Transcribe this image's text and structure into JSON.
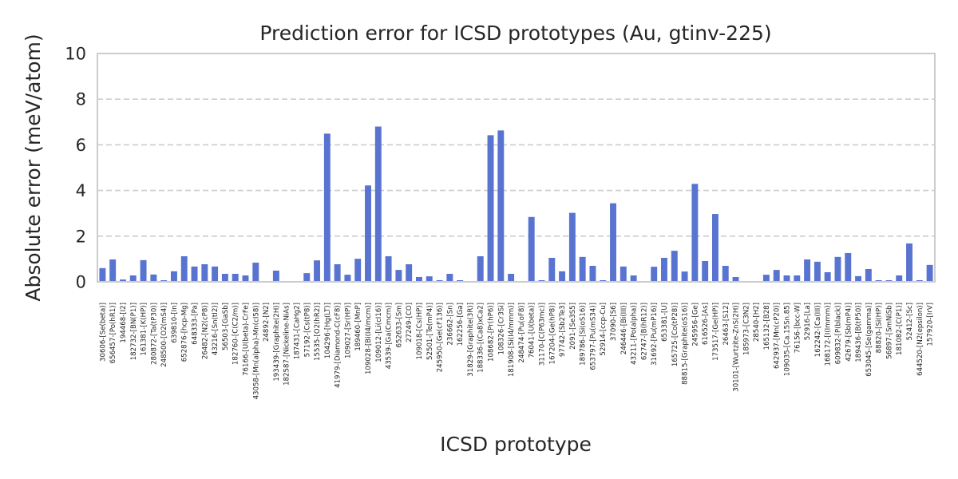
{
  "chart_data": {
    "type": "bar",
    "title": "Prediction error for ICSD prototypes (Au, gtinv-225)",
    "xlabel": "ICSD prototype",
    "ylabel": "Absolute error (meV/atom)",
    "ylim": [
      0,
      10
    ],
    "yticks": [
      0,
      2,
      4,
      6,
      8,
      10
    ],
    "grid": "y-dashed",
    "bar_color": "#5874d0",
    "categories": [
      "30606-[Se(beta)]",
      "656457-[Po(hR1)]",
      "194468-[I2]",
      "182732-[BN(P1)]",
      "161381-[K(HP)]",
      "280872-[Ta(tP30)]",
      "248500-[O2(mS4)]",
      "639810-[In]",
      "652876-[hcp-Mg]",
      "648333-[Pa]",
      "26482-[N2(cP8)]",
      "43216-[Sn(tI2)]",
      "56503-[GaSb]",
      "182760-[C(C2/m)]",
      "76166-[U(beta)-CrFe]",
      "43058-[Mn(alpha)-Mn(cI58)]",
      "24892-[N2]",
      "193439-[Graphite(2H)]",
      "182587-[Nickeline-NiAs]",
      "187431-[CaHg2]",
      "57192-[Cs(tP8)]",
      "15535-[O2(hR2)]",
      "104296-[Hg(LT)]",
      "41979-[Diamond-C(cF8)]",
      "109027-[Sr(HP)]",
      "189460-[MnP]",
      "109028-[Bi(I4/mcm)]",
      "109012-[Li(cI16)]",
      "43539-[Ga(Cmcm)]",
      "652633-[Sm]",
      "27249-[CO]",
      "109018-[Cs(HP)]",
      "52501-[Te(mP4)]",
      "245950-[Ge(cF136)]",
      "236662-[Sn]",
      "162256-[Ga]",
      "31829-[Graphite(3R)]",
      "188336-[(Ca8)xCa2]",
      "108682-[Pr(hP6)]",
      "108326-[Cr3Si]",
      "181908-[Si(I4/mmm)]",
      "248474-[Pu(oF8)]",
      "76041-[U(beta)]",
      "31170-[C(P63mc)]",
      "167204-[Ge(hP8)]",
      "97742-[Sb2Te3]",
      "2091-[Se3S5]",
      "189786-[Si(oS16)]",
      "653797-[Pu(mS34)]",
      "52914-[ccp-Cu]",
      "37090-[S6]",
      "246446-[Bi(III)]",
      "43211-[Po(alpha)]",
      "62747-[B(hR12)]",
      "31692-[Pu(mP16)]",
      "653381-[U]",
      "165725-[Co(tP28)]",
      "88815-[Graphite(oS16)]",
      "245956-[Ge]",
      "616526-[As]",
      "173517-[Ge(HP)]",
      "26463-[S12]",
      "30101-[Wurtzite-ZnS(2H)]",
      "185973-[C3N2]",
      "28540-[H2]",
      "165132-[B28]",
      "642937-[Mn(cP20)]",
      "109035-[Ca.15Sn.85]",
      "76156-[bcc-W]",
      "52916-[La]",
      "162242-[Ca(III)]",
      "168172-[I(Immm)]",
      "609832-[P(black)]",
      "42679-[Sb(mP4)]",
      "189436-[B(tP50)]",
      "653045-[Se(gamma)]",
      "88820-[Si(HP)]",
      "56897-[SmNiSb]",
      "181082-[C(P1)]",
      "52412-[Sc]",
      "644520-[N2(epsilon)]",
      "157920-[IrV]"
    ],
    "values": [
      0.6,
      0.98,
      0.1,
      0.28,
      0.95,
      0.32,
      0.07,
      0.46,
      1.12,
      0.67,
      0.77,
      0.67,
      0.35,
      0.35,
      0.28,
      0.84,
      0.0,
      0.49,
      0.0,
      0.0,
      0.38,
      0.94,
      6.49,
      0.77,
      0.31,
      1.01,
      4.22,
      6.8,
      1.12,
      0.52,
      0.77,
      0.21,
      0.24,
      0.07,
      0.35,
      0.07,
      0.0,
      1.12,
      6.42,
      6.63,
      0.35,
      0.0,
      2.84,
      0.07,
      1.05,
      0.46,
      3.02,
      1.09,
      0.7,
      0.07,
      3.44,
      0.67,
      0.28,
      0.0,
      0.66,
      1.05,
      1.36,
      0.45,
      4.29,
      0.91,
      2.97,
      0.7,
      0.21,
      0.0,
      0.0,
      0.31,
      0.52,
      0.28,
      0.28,
      0.98,
      0.88,
      0.42,
      1.09,
      1.26,
      0.25,
      0.56,
      0.07,
      0.07,
      0.28,
      1.68,
      0.07,
      0.74
    ]
  }
}
